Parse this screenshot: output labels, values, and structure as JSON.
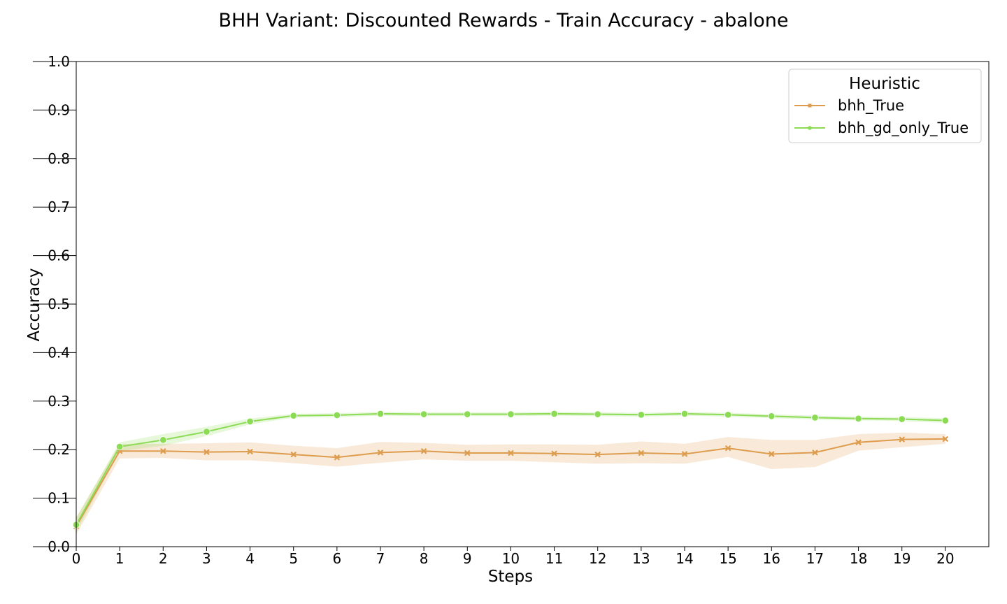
{
  "chart_data": {
    "type": "line",
    "title": "BHH Variant: Discounted Rewards - Train Accuracy - abalone",
    "xlabel": "Steps",
    "ylabel": "Accuracy",
    "xlim": [
      0,
      21
    ],
    "ylim": [
      0.0,
      1.0
    ],
    "x_ticks": [
      "0",
      "1",
      "2",
      "3",
      "4",
      "5",
      "6",
      "7",
      "8",
      "9",
      "10",
      "11",
      "12",
      "13",
      "14",
      "15",
      "16",
      "17",
      "18",
      "19",
      "20"
    ],
    "y_ticks": [
      "0.0",
      "0.1",
      "0.2",
      "0.3",
      "0.4",
      "0.5",
      "0.6",
      "0.7",
      "0.8",
      "0.9",
      "1.0"
    ],
    "grid": false,
    "legend": {
      "title": "Heuristic",
      "position": "top-right"
    },
    "x": [
      0,
      1,
      2,
      3,
      4,
      5,
      6,
      7,
      8,
      9,
      10,
      11,
      12,
      13,
      14,
      15,
      16,
      17,
      18,
      19,
      20
    ],
    "series": [
      {
        "name": "bhh_True",
        "color": "#dd9c4e",
        "marker": "x",
        "values": [
          0.042,
          0.197,
          0.197,
          0.195,
          0.196,
          0.19,
          0.184,
          0.194,
          0.197,
          0.193,
          0.193,
          0.192,
          0.19,
          0.193,
          0.191,
          0.203,
          0.191,
          0.194,
          0.215,
          0.221,
          0.222
        ],
        "lower": [
          0.025,
          0.182,
          0.183,
          0.178,
          0.178,
          0.172,
          0.165,
          0.173,
          0.18,
          0.177,
          0.177,
          0.174,
          0.171,
          0.172,
          0.171,
          0.185,
          0.16,
          0.164,
          0.198,
          0.205,
          0.212
        ],
        "upper": [
          0.06,
          0.212,
          0.212,
          0.213,
          0.215,
          0.208,
          0.203,
          0.216,
          0.214,
          0.21,
          0.211,
          0.211,
          0.21,
          0.217,
          0.212,
          0.226,
          0.22,
          0.22,
          0.232,
          0.235,
          0.232
        ]
      },
      {
        "name": "bhh_gd_only_True",
        "color": "#8cdb55",
        "marker": "circle",
        "values": [
          0.045,
          0.206,
          0.22,
          0.237,
          0.258,
          0.27,
          0.271,
          0.274,
          0.273,
          0.273,
          0.273,
          0.274,
          0.273,
          0.272,
          0.274,
          0.272,
          0.269,
          0.266,
          0.264,
          0.263,
          0.26
        ],
        "lower": [
          0.03,
          0.197,
          0.208,
          0.228,
          0.252,
          0.266,
          0.267,
          0.27,
          0.269,
          0.269,
          0.269,
          0.27,
          0.269,
          0.268,
          0.27,
          0.268,
          0.265,
          0.262,
          0.26,
          0.259,
          0.255
        ],
        "upper": [
          0.06,
          0.215,
          0.232,
          0.247,
          0.264,
          0.274,
          0.275,
          0.278,
          0.277,
          0.277,
          0.277,
          0.278,
          0.277,
          0.276,
          0.278,
          0.276,
          0.273,
          0.27,
          0.268,
          0.267,
          0.265
        ]
      }
    ]
  }
}
